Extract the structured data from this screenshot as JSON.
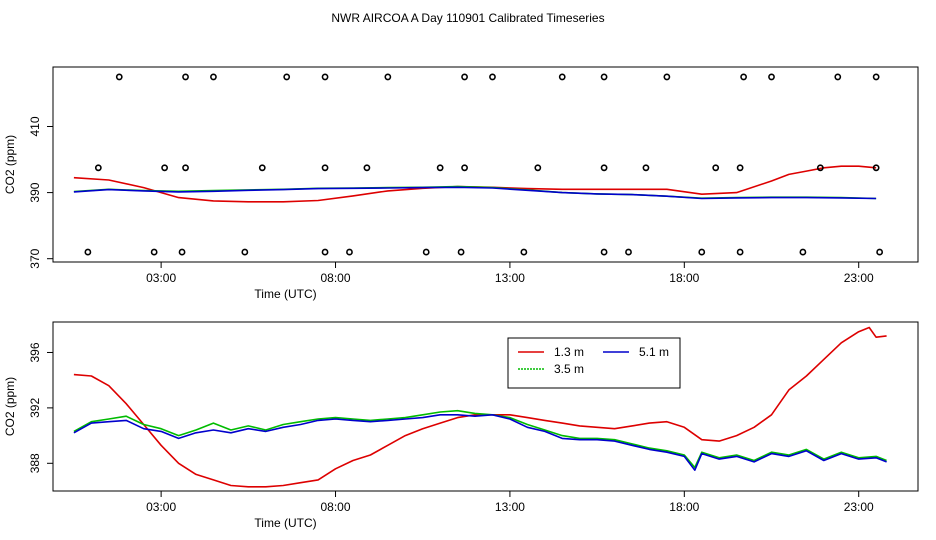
{
  "title": "NWR AIRCOA A  Day 110901  Calibrated Timeseries",
  "chart_data": [
    {
      "type": "line",
      "xlabel": "Time (UTC)",
      "ylabel": "CO2 (ppm)",
      "xlim": [
        -0.1,
        24.7
      ],
      "ylim": [
        369,
        428
      ],
      "xticks": [
        3,
        8,
        13,
        18,
        23
      ],
      "xtick_labels": [
        "03:00",
        "08:00",
        "13:00",
        "18:00",
        "23:00"
      ],
      "yticks": [
        370,
        390,
        410
      ],
      "ytick_labels": [
        "370",
        "390",
        "410"
      ],
      "series": [
        {
          "name": "1.3 m",
          "color": "#dd0000",
          "x": [
            0.5,
            1.5,
            2.5,
            3.5,
            4.5,
            5.5,
            6.5,
            7.5,
            8.5,
            9.5,
            10.5,
            11.5,
            12.5,
            13.5,
            14.5,
            15.5,
            16.5,
            17.5,
            18.5,
            19.5,
            20.5,
            21.0,
            21.5,
            22.0,
            22.5,
            23.0,
            23.5
          ],
          "y": [
            394.5,
            393.8,
            391.5,
            388.5,
            387.5,
            387.2,
            387.2,
            387.6,
            389,
            390.5,
            391.3,
            391.8,
            391.6,
            391.2,
            391,
            391,
            391,
            391,
            389.5,
            390,
            393.5,
            395.5,
            396.5,
            397.5,
            398,
            398,
            397.5
          ]
        },
        {
          "name": "3.5 m",
          "color": "#00bb00",
          "x": [
            0.5,
            1.5,
            2.5,
            3.5,
            4.5,
            5.5,
            6.5,
            7.5,
            8.5,
            9.5,
            10.5,
            11.5,
            12.5,
            13.5,
            14.5,
            15.5,
            16.5,
            17.5,
            18.5,
            19.5,
            20.5,
            21.5,
            22.5,
            23.5
          ],
          "y": [
            390.3,
            391.0,
            390.6,
            390.4,
            390.6,
            390.8,
            391.0,
            391.3,
            391.4,
            391.5,
            391.6,
            391.8,
            391.5,
            390.8,
            390.0,
            389.6,
            389.4,
            388.9,
            388.3,
            388.5,
            388.6,
            388.6,
            388.5,
            388.2
          ]
        },
        {
          "name": "5.1 m",
          "color": "#0000cc",
          "x": [
            0.5,
            1.5,
            2.5,
            3.5,
            4.5,
            5.5,
            6.5,
            7.5,
            8.5,
            9.5,
            10.5,
            11.5,
            12.5,
            13.5,
            14.5,
            15.5,
            16.5,
            17.5,
            18.5,
            19.5,
            20.5,
            21.5,
            22.5,
            23.5
          ],
          "y": [
            390.2,
            390.9,
            390.5,
            390.2,
            390.4,
            390.7,
            390.9,
            391.2,
            391.3,
            391.4,
            391.5,
            391.6,
            391.4,
            390.7,
            390.0,
            389.6,
            389.4,
            388.9,
            388.2,
            388.4,
            388.5,
            388.5,
            388.4,
            388.2
          ]
        }
      ],
      "calibration_points": {
        "x": [
          1.8,
          3.7,
          4.5,
          6.6,
          7.7,
          9.5,
          11.7,
          12.5,
          14.5,
          15.7,
          17.5,
          19.7,
          20.5,
          22.4,
          23.5,
          1.2,
          3.1,
          3.7,
          5.9,
          7.7,
          8.9,
          11.0,
          11.7,
          13.8,
          15.7,
          16.9,
          18.9,
          19.6,
          21.9,
          23.5,
          0.9,
          2.8,
          3.6,
          5.4,
          7.7,
          8.4,
          10.6,
          11.6,
          13.4,
          15.7,
          16.4,
          18.5,
          19.6,
          21.4,
          23.6
        ],
        "y": [
          425,
          425,
          425,
          425,
          425,
          425,
          425,
          425,
          425,
          425,
          425,
          425,
          425,
          425,
          425,
          397.5,
          397.5,
          397.5,
          397.5,
          397.5,
          397.5,
          397.5,
          397.5,
          397.5,
          397.5,
          397.5,
          397.5,
          397.5,
          397.5,
          397.5,
          372,
          372,
          372,
          372,
          372,
          372,
          372,
          372,
          372,
          372,
          372,
          372,
          372,
          372,
          372
        ]
      }
    },
    {
      "type": "line",
      "xlabel": "Time (UTC)",
      "ylabel": "CO2 (ppm)",
      "xlim": [
        -0.1,
        24.7
      ],
      "ylim": [
        386,
        398.2
      ],
      "xticks": [
        3,
        8,
        13,
        18,
        23
      ],
      "xtick_labels": [
        "03:00",
        "08:00",
        "13:00",
        "18:00",
        "23:00"
      ],
      "yticks": [
        388,
        392,
        396
      ],
      "ytick_labels": [
        "388",
        "392",
        "396"
      ],
      "legend": {
        "position": "top-center",
        "entries": [
          "1.3 m",
          "5.1 m",
          "3.5 m"
        ]
      },
      "series": [
        {
          "name": "1.3 m",
          "color": "#dd0000",
          "x": [
            0.5,
            1.0,
            1.5,
            2.0,
            2.5,
            3.0,
            3.5,
            4.0,
            4.5,
            5.0,
            5.5,
            6.0,
            6.5,
            7.0,
            7.5,
            8.0,
            8.5,
            9.0,
            9.5,
            10.0,
            10.5,
            11.0,
            11.5,
            12.0,
            12.5,
            13.0,
            13.5,
            14.0,
            14.5,
            15.0,
            15.5,
            16.0,
            16.5,
            17.0,
            17.5,
            18.0,
            18.5,
            19.0,
            19.5,
            20.0,
            20.5,
            21.0,
            21.5,
            22.0,
            22.5,
            23.0,
            23.3,
            23.5,
            23.8
          ],
          "y": [
            394.4,
            394.3,
            393.6,
            392.3,
            390.8,
            389.3,
            388.0,
            387.2,
            386.8,
            386.4,
            386.3,
            386.3,
            386.4,
            386.6,
            386.8,
            387.6,
            388.2,
            388.6,
            389.3,
            390.0,
            390.5,
            390.9,
            391.3,
            391.5,
            391.5,
            391.5,
            391.3,
            391.1,
            390.9,
            390.7,
            390.6,
            390.5,
            390.7,
            390.9,
            391.0,
            390.6,
            389.7,
            389.6,
            390.0,
            390.6,
            391.5,
            393.3,
            394.3,
            395.5,
            396.7,
            397.5,
            397.8,
            397.1,
            397.2
          ]
        },
        {
          "name": "3.5 m",
          "color": "#00bb00",
          "x": [
            0.5,
            1.0,
            1.5,
            2.0,
            2.5,
            3.0,
            3.5,
            4.0,
            4.5,
            5.0,
            5.5,
            6.0,
            6.5,
            7.0,
            7.5,
            8.0,
            8.5,
            9.0,
            9.5,
            10.0,
            10.5,
            11.0,
            11.5,
            12.0,
            12.5,
            13.0,
            13.5,
            14.0,
            14.5,
            15.0,
            15.5,
            16.0,
            16.5,
            17.0,
            17.5,
            18.0,
            18.3,
            18.5,
            19.0,
            19.5,
            20.0,
            20.5,
            21.0,
            21.5,
            22.0,
            22.5,
            23.0,
            23.5,
            23.8
          ],
          "y": [
            390.3,
            391.0,
            391.2,
            391.4,
            390.8,
            390.5,
            390.0,
            390.4,
            390.9,
            390.4,
            390.7,
            390.4,
            390.8,
            391.0,
            391.2,
            391.3,
            391.2,
            391.1,
            391.2,
            391.3,
            391.5,
            391.7,
            391.8,
            391.6,
            391.5,
            391.3,
            390.8,
            390.4,
            390.0,
            389.8,
            389.8,
            389.7,
            389.4,
            389.1,
            388.9,
            388.6,
            387.7,
            388.8,
            388.4,
            388.6,
            388.2,
            388.8,
            388.6,
            389.0,
            388.3,
            388.8,
            388.4,
            388.5,
            388.2
          ]
        },
        {
          "name": "5.1 m",
          "color": "#0000cc",
          "x": [
            0.5,
            1.0,
            1.5,
            2.0,
            2.5,
            3.0,
            3.5,
            4.0,
            4.5,
            5.0,
            5.5,
            6.0,
            6.5,
            7.0,
            7.5,
            8.0,
            8.5,
            9.0,
            9.5,
            10.0,
            10.5,
            11.0,
            11.5,
            12.0,
            12.5,
            13.0,
            13.5,
            14.0,
            14.5,
            15.0,
            15.5,
            16.0,
            16.5,
            17.0,
            17.5,
            18.0,
            18.3,
            18.5,
            19.0,
            19.5,
            20.0,
            20.5,
            21.0,
            21.5,
            22.0,
            22.5,
            23.0,
            23.5,
            23.8
          ],
          "y": [
            390.2,
            390.9,
            391.0,
            391.1,
            390.5,
            390.3,
            389.8,
            390.2,
            390.4,
            390.2,
            390.5,
            390.3,
            390.6,
            390.8,
            391.1,
            391.2,
            391.1,
            391.0,
            391.1,
            391.2,
            391.3,
            391.5,
            391.5,
            391.4,
            391.5,
            391.2,
            390.6,
            390.3,
            389.8,
            389.7,
            389.7,
            389.6,
            389.3,
            389.0,
            388.8,
            388.5,
            387.5,
            388.7,
            388.3,
            388.5,
            388.1,
            388.7,
            388.5,
            388.9,
            388.2,
            388.7,
            388.3,
            388.4,
            388.1
          ]
        }
      ]
    }
  ]
}
